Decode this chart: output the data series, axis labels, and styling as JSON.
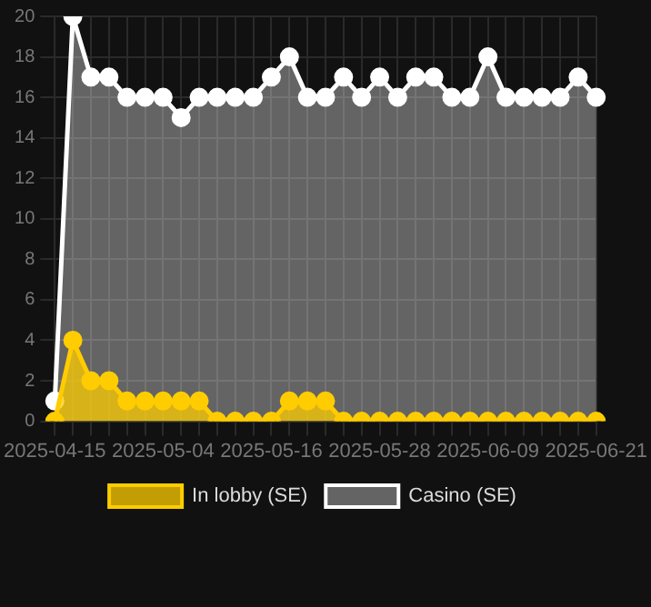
{
  "chart_data": {
    "type": "area",
    "categories": [
      "2025-04-15",
      null,
      null,
      null,
      null,
      null,
      "2025-05-04",
      null,
      null,
      null,
      null,
      null,
      "2025-05-16",
      null,
      null,
      null,
      null,
      null,
      "2025-05-28",
      null,
      null,
      null,
      null,
      null,
      "2025-06-09",
      null,
      null,
      null,
      null,
      null,
      "2025-06-21"
    ],
    "series": [
      {
        "name": "In lobby (SE)",
        "color": "#ffcc00",
        "values": [
          0,
          4,
          2,
          2,
          1,
          1,
          1,
          1,
          1,
          0,
          0,
          0,
          0,
          1,
          1,
          1,
          0,
          0,
          0,
          0,
          0,
          0,
          0,
          0,
          0,
          0,
          0,
          0,
          0,
          0,
          0
        ]
      },
      {
        "name": "Casino (SE)",
        "color": "#ffffff",
        "values": [
          1,
          20,
          17,
          17,
          16,
          16,
          16,
          15,
          16,
          16,
          16,
          16,
          17,
          18,
          16,
          16,
          17,
          16,
          17,
          16,
          17,
          17,
          16,
          16,
          18,
          16,
          16,
          16,
          16,
          17,
          16
        ]
      }
    ],
    "ylim": [
      0,
      20
    ],
    "yticks": [
      0,
      2,
      4,
      6,
      8,
      10,
      12,
      14,
      16,
      18,
      20
    ],
    "grid": true,
    "legend": "bottom",
    "marker": "circle"
  }
}
